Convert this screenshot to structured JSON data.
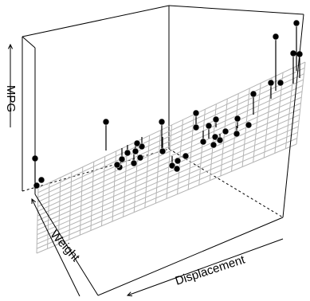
{
  "chart_data": {
    "type": "scatter",
    "subtype": "3d-scatter-with-regression-plane",
    "xlabel": "Displacement",
    "ylabel": "Weight",
    "zlabel": "MPG",
    "grid": false,
    "box": true,
    "plane_grid": "light gray regression plane mesh",
    "colors": {
      "points": "#000000",
      "plane": "#b4b4b4",
      "box": "#000000",
      "drops": "#000000"
    }
  }
}
